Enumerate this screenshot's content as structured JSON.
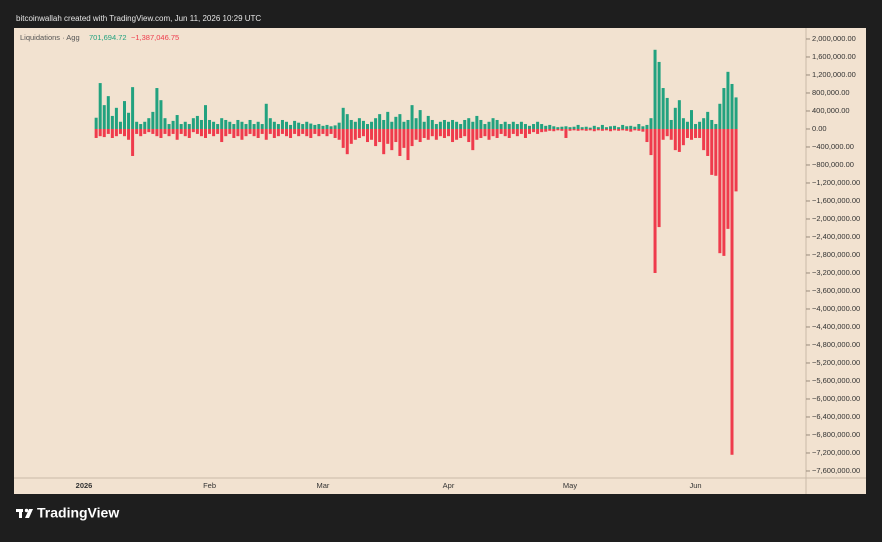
{
  "attribution": "bitcoinwallah created with TradingView.com, Jun 11, 2026 10:29 UTC",
  "logo": "TradingView",
  "chart_data": {
    "type": "bar",
    "legend_title": "Liquidations · Agg",
    "legend_values": [
      "701,694.72",
      "−1,387,046.75"
    ],
    "categories": [
      "2026",
      null,
      null,
      null,
      null,
      null,
      null,
      null,
      null,
      null,
      null,
      null,
      null,
      null,
      null,
      null,
      null,
      null,
      null,
      null,
      null,
      null,
      null,
      null,
      null,
      null,
      null,
      null,
      null,
      null,
      null,
      "Feb",
      null,
      null,
      null,
      null,
      null,
      null,
      null,
      null,
      null,
      null,
      null,
      null,
      null,
      null,
      null,
      null,
      null,
      null,
      null,
      null,
      null,
      null,
      null,
      null,
      null,
      null,
      null,
      "Mar",
      null,
      null,
      null,
      null,
      null,
      null,
      null,
      null,
      null,
      null,
      null,
      null,
      null,
      null,
      null,
      null,
      null,
      null,
      null,
      null,
      null,
      null,
      null,
      null,
      null,
      null,
      null,
      null,
      null,
      null,
      "Apr",
      null,
      null,
      null,
      null,
      null,
      null,
      null,
      null,
      null,
      null,
      null,
      null,
      null,
      null,
      null,
      null,
      null,
      null,
      null,
      null,
      null,
      null,
      null,
      null,
      null,
      null,
      null,
      null,
      null,
      "May",
      null,
      null,
      null,
      null,
      null,
      null,
      null,
      null,
      null,
      null,
      null,
      null,
      null,
      null,
      null,
      null,
      null,
      null,
      null,
      null,
      null,
      null,
      null,
      null,
      null,
      null,
      null,
      null,
      null,
      null,
      "Jun",
      null,
      null,
      null,
      null,
      null,
      null,
      null,
      null,
      null,
      null
    ],
    "series": [
      {
        "color": "#22a27f",
        "values": [
          null,
          null,
          null,
          250000,
          1020000,
          530000,
          730000,
          290000,
          470000,
          160000,
          620000,
          360000,
          930000,
          160000,
          110000,
          160000,
          240000,
          380000,
          910000,
          640000,
          240000,
          110000,
          180000,
          310000,
          110000,
          160000,
          110000,
          240000,
          290000,
          200000,
          530000,
          200000,
          160000,
          110000,
          240000,
          200000,
          160000,
          110000,
          200000,
          160000,
          110000,
          200000,
          110000,
          160000,
          110000,
          560000,
          240000,
          160000,
          110000,
          200000,
          160000,
          90000,
          180000,
          140000,
          110000,
          160000,
          120000,
          90000,
          110000,
          70000,
          90000,
          60000,
          80000,
          140000,
          470000,
          330000,
          200000,
          160000,
          240000,
          180000,
          110000,
          160000,
          240000,
          330000,
          200000,
          380000,
          160000,
          270000,
          330000,
          160000,
          200000,
          530000,
          240000,
          420000,
          160000,
          290000,
          200000,
          110000,
          160000,
          200000,
          160000,
          200000,
          160000,
          110000,
          200000,
          240000,
          160000,
          290000,
          200000,
          110000,
          160000,
          240000,
          200000,
          110000,
          160000,
          110000,
          160000,
          110000,
          160000,
          110000,
          70000,
          110000,
          160000,
          110000,
          70000,
          90000,
          60000,
          40000,
          50000,
          60000,
          40000,
          50000,
          90000,
          40000,
          50000,
          30000,
          70000,
          40000,
          90000,
          40000,
          60000,
          70000,
          40000,
          90000,
          60000,
          70000,
          50000,
          110000,
          60000,
          90000,
          240000,
          1760000,
          1490000,
          910000,
          690000,
          200000,
          470000,
          640000,
          240000,
          160000,
          420000,
          110000,
          160000,
          240000,
          380000,
          200000,
          110000,
          560000,
          910000,
          1270000,
          1000000,
          701694.72
        ]
      },
      {
        "color": "#ef3b4c",
        "values": [
          null,
          null,
          null,
          -200000,
          -160000,
          -180000,
          -110000,
          -200000,
          -160000,
          -110000,
          -160000,
          -240000,
          -600000,
          -110000,
          -160000,
          -110000,
          -70000,
          -110000,
          -160000,
          -200000,
          -110000,
          -160000,
          -110000,
          -240000,
          -110000,
          -160000,
          -200000,
          -70000,
          -110000,
          -160000,
          -200000,
          -110000,
          -160000,
          -110000,
          -290000,
          -160000,
          -110000,
          -200000,
          -160000,
          -240000,
          -160000,
          -110000,
          -160000,
          -200000,
          -110000,
          -240000,
          -110000,
          -200000,
          -160000,
          -110000,
          -160000,
          -200000,
          -110000,
          -160000,
          -110000,
          -160000,
          -200000,
          -110000,
          -160000,
          -110000,
          -160000,
          -110000,
          -200000,
          -240000,
          -420000,
          -560000,
          -330000,
          -240000,
          -200000,
          -160000,
          -290000,
          -240000,
          -380000,
          -290000,
          -560000,
          -330000,
          -470000,
          -290000,
          -600000,
          -420000,
          -690000,
          -380000,
          -240000,
          -290000,
          -200000,
          -240000,
          -160000,
          -240000,
          -160000,
          -200000,
          -160000,
          -290000,
          -240000,
          -200000,
          -160000,
          -290000,
          -470000,
          -240000,
          -200000,
          -160000,
          -240000,
          -160000,
          -200000,
          -110000,
          -160000,
          -200000,
          -110000,
          -160000,
          -110000,
          -200000,
          -110000,
          -70000,
          -110000,
          -70000,
          -60000,
          -40000,
          -50000,
          -30000,
          -40000,
          -200000,
          -40000,
          -30000,
          -40000,
          -30000,
          -40000,
          -30000,
          -50000,
          -30000,
          -40000,
          -30000,
          -50000,
          -30000,
          -40000,
          -30000,
          -40000,
          -60000,
          -30000,
          -40000,
          -60000,
          -290000,
          -580000,
          -3200000,
          -2180000,
          -240000,
          -160000,
          -240000,
          -470000,
          -510000,
          -360000,
          -200000,
          -240000,
          -200000,
          -200000,
          -470000,
          -600000,
          -1020000,
          -1040000,
          -2760000,
          -2820000,
          -2220000,
          -7240000,
          -1387046.75
        ]
      }
    ],
    "ylim": [
      -7756000,
      2244000
    ],
    "yticks": [
      {
        "value": 2000000,
        "label": "2,000,000.00"
      },
      {
        "value": 1600000,
        "label": "1,600,000.00"
      },
      {
        "value": 1200000,
        "label": "1,200,000.00"
      },
      {
        "value": 800000,
        "label": "800,000.00"
      },
      {
        "value": 400000,
        "label": "400,000.00"
      },
      {
        "value": 0,
        "label": "0.00"
      },
      {
        "value": -400000,
        "label": "−400,000.00"
      },
      {
        "value": -800000,
        "label": "−800,000.00"
      },
      {
        "value": -1200000,
        "label": "−1,200,000.00"
      },
      {
        "value": -1600000,
        "label": "−1,600,000.00"
      },
      {
        "value": -2000000,
        "label": "−2,000,000.00"
      },
      {
        "value": -2400000,
        "label": "−2,400,000.00"
      },
      {
        "value": -2800000,
        "label": "−2,800,000.00"
      },
      {
        "value": -3200000,
        "label": "−3,200,000.00"
      },
      {
        "value": -3600000,
        "label": "−3,600,000.00"
      },
      {
        "value": -4000000,
        "label": "−4,000,000.00"
      },
      {
        "value": -4400000,
        "label": "−4,400,000.00"
      },
      {
        "value": -4800000,
        "label": "−4,800,000.00"
      },
      {
        "value": -5200000,
        "label": "−5,200,000.00"
      },
      {
        "value": -5600000,
        "label": "−5,600,000.00"
      },
      {
        "value": -6000000,
        "label": "−6,000,000.00"
      },
      {
        "value": -6400000,
        "label": "−6,400,000.00"
      },
      {
        "value": -6800000,
        "label": "−6,800,000.00"
      },
      {
        "value": -7200000,
        "label": "−7,200,000.00"
      },
      {
        "value": -7600000,
        "label": "−7,600,000.00"
      }
    ]
  }
}
